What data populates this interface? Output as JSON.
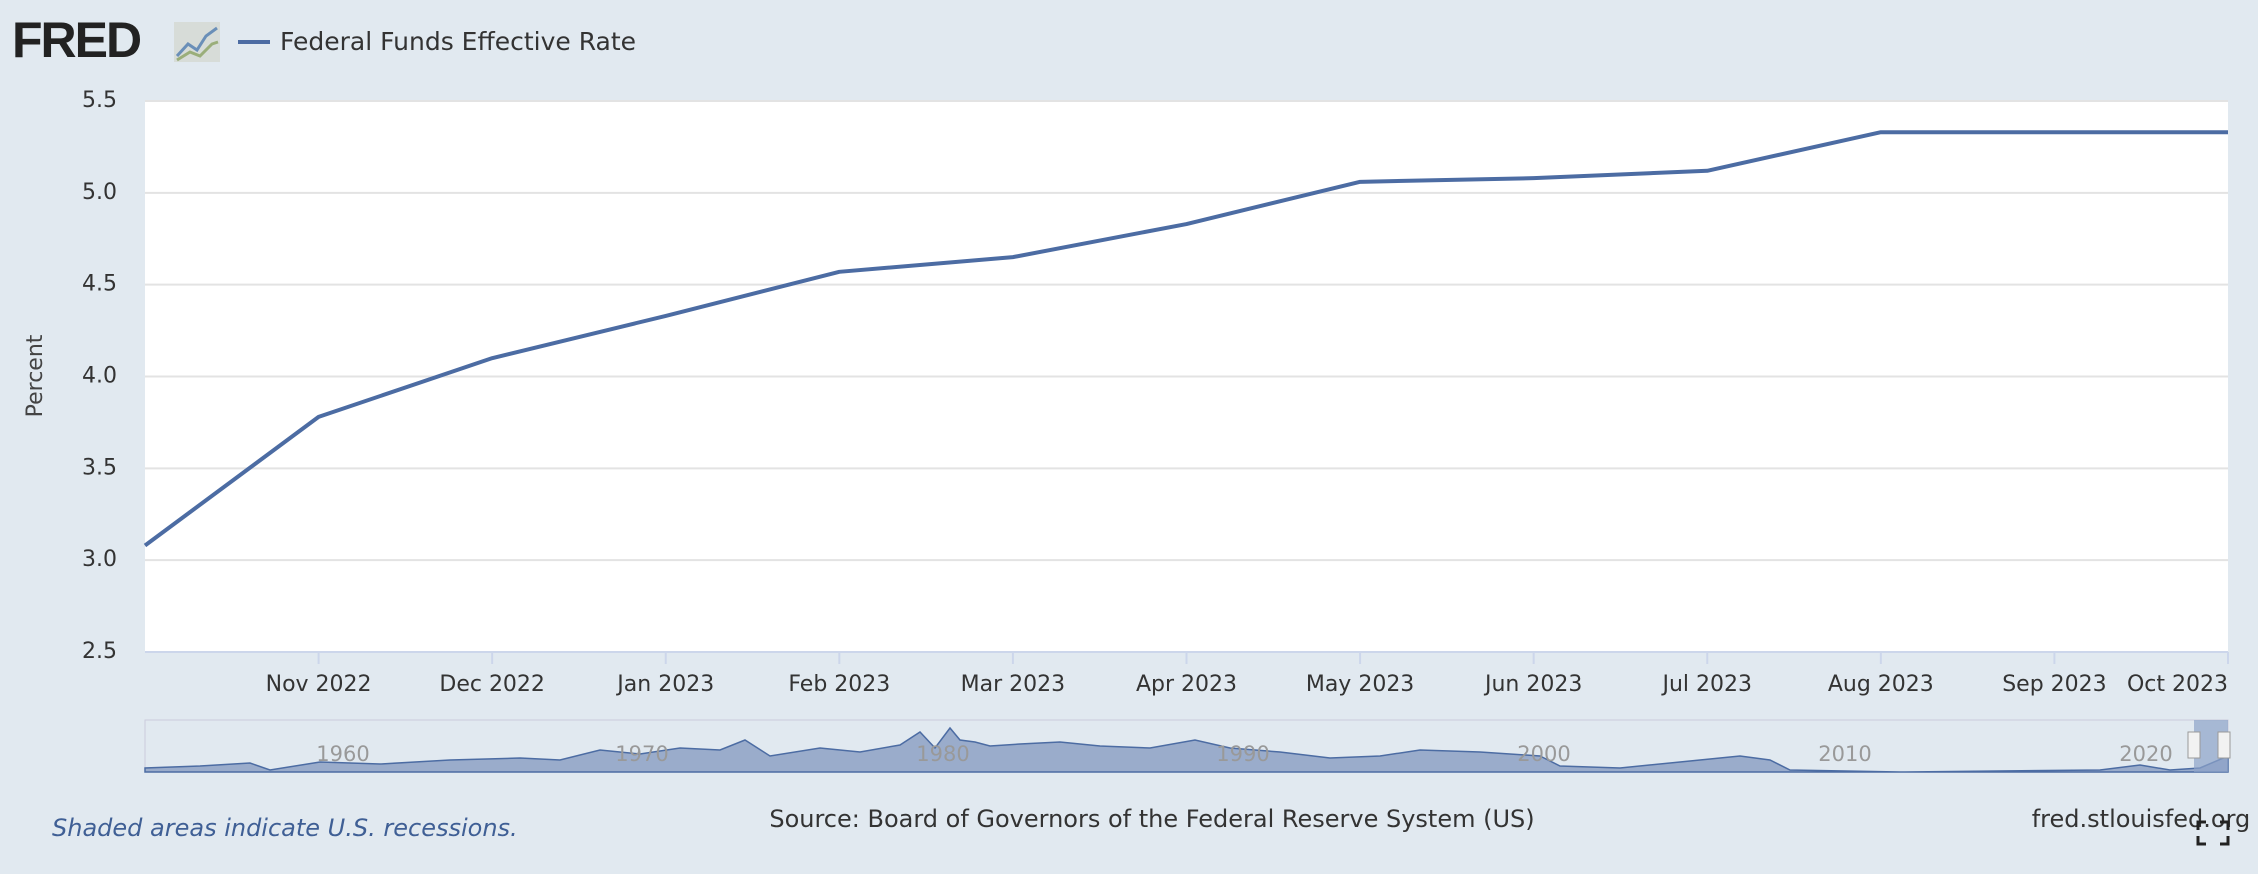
{
  "brand": "FRED",
  "chart_data": {
    "type": "line",
    "categories": [
      null,
      "Nov 2022",
      "Dec 2022",
      "Jan 2023",
      "Feb 2023",
      "Mar 2023",
      "Apr 2023",
      "May 2023",
      "Jun 2023",
      "Jul 2023",
      "Aug 2023",
      "Sep 2023",
      "Oct 2023"
    ],
    "series": [
      {
        "name": "Federal Funds Effective Rate",
        "color": "#4c6ca3",
        "values": [
          3.08,
          3.78,
          4.1,
          4.33,
          4.57,
          4.65,
          4.83,
          5.06,
          5.08,
          5.12,
          5.33,
          5.33,
          5.33
        ]
      }
    ],
    "y_label": "Percent",
    "ylim": [
      2.5,
      5.5
    ],
    "yticks": [
      2.5,
      {
        "value": 3,
        "label": "3.0"
      },
      3.5,
      {
        "value": 4,
        "label": "4.0"
      },
      4.5,
      {
        "value": 5,
        "label": "5.0"
      },
      5.5
    ],
    "grid": true,
    "navigator_labels": [
      "1960",
      "1970",
      "1980",
      "1990",
      "2000",
      "2010",
      "2020"
    ]
  },
  "footer": {
    "note": "Shaded areas indicate U.S. recessions.",
    "source": "Source: Board of Governors of the Federal Reserve System (US)",
    "site": "fred.stlouisfed.org"
  }
}
